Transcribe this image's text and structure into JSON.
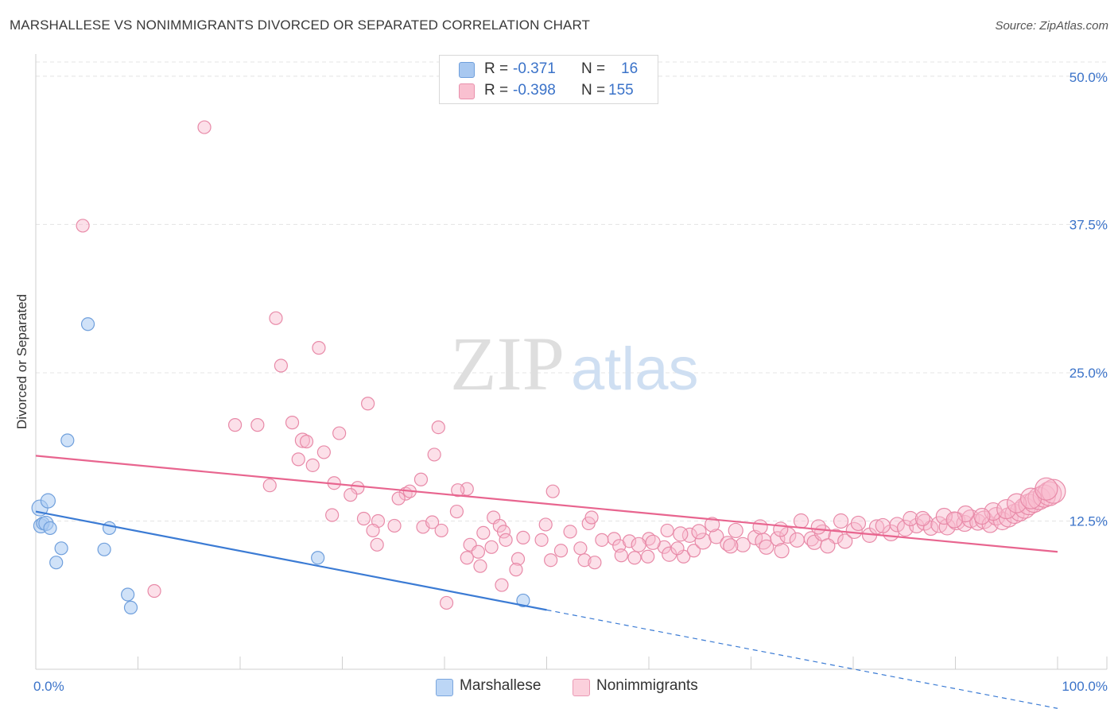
{
  "title": "MARSHALLESE VS NONIMMIGRANTS DIVORCED OR SEPARATED CORRELATION CHART",
  "source": "Source: ZipAtlas.com",
  "watermark": {
    "zip": "ZIP",
    "atlas": "atlas"
  },
  "legend_top": [
    {
      "r_label": "R =",
      "r_value": "-0.371",
      "n_label": "N =",
      "n_value": "16",
      "color": "#a8c8f0",
      "border": "#6f9fdc"
    },
    {
      "r_label": "R =",
      "r_value": "-0.398",
      "n_label": "N =",
      "n_value": "155",
      "color": "#f9c0d0",
      "border": "#e990ac"
    }
  ],
  "legend_bottom": [
    {
      "label": "Marshallese",
      "color": "#bcd6f6",
      "border": "#7aa6de"
    },
    {
      "label": "Nonimmigrants",
      "color": "#fbd0dc",
      "border": "#ea9ab4"
    }
  ],
  "chart_data": {
    "type": "scatter",
    "ylabel": "Divorced or Separated",
    "xlabel": "",
    "xlim": [
      0,
      100
    ],
    "ylim": [
      0,
      50
    ],
    "x_tick_labels": [
      {
        "value": 0,
        "label": "0.0%"
      },
      {
        "value": 100,
        "label": "100.0%"
      }
    ],
    "y_tick_labels": [
      {
        "value": 12.5,
        "label": "12.5%"
      },
      {
        "value": 25.0,
        "label": "25.0%"
      },
      {
        "value": 37.5,
        "label": "37.5%"
      },
      {
        "value": 50.0,
        "label": "50.0%"
      }
    ],
    "grid": true,
    "colors": {
      "marshallese": "#3b7bd4",
      "nonimmigrants": "#e8658f"
    },
    "series": [
      {
        "name": "Marshallese",
        "points": [
          [
            0.4,
            13.6,
            10
          ],
          [
            0.5,
            12.1,
            9
          ],
          [
            0.7,
            12.3,
            8
          ],
          [
            1.0,
            12.3,
            9
          ],
          [
            1.2,
            14.2,
            9
          ],
          [
            1.4,
            11.9,
            8
          ],
          [
            2.0,
            9.0,
            8
          ],
          [
            2.5,
            10.2,
            8
          ],
          [
            3.1,
            19.3,
            8
          ],
          [
            5.1,
            29.1,
            8
          ],
          [
            6.7,
            10.1,
            8
          ],
          [
            7.2,
            11.9,
            8
          ],
          [
            9.0,
            6.3,
            8
          ],
          [
            9.3,
            5.2,
            8
          ],
          [
            27.6,
            9.4,
            8
          ],
          [
            47.7,
            5.8,
            8
          ]
        ],
        "trend": {
          "x": [
            0,
            50
          ],
          "y": [
            13.3,
            5.0
          ],
          "dashed_to": [
            100,
            -3.3
          ]
        }
      },
      {
        "name": "Nonimmigrants",
        "points": [
          [
            16.5,
            45.7,
            8
          ],
          [
            4.6,
            37.4,
            8
          ],
          [
            23.5,
            29.6,
            8
          ],
          [
            27.7,
            27.1,
            8
          ],
          [
            24.0,
            25.6,
            8
          ],
          [
            32.5,
            22.4,
            8
          ],
          [
            19.5,
            20.6,
            8
          ],
          [
            21.7,
            20.6,
            8
          ],
          [
            25.1,
            20.8,
            8
          ],
          [
            29.7,
            19.9,
            8
          ],
          [
            39.4,
            20.4,
            8
          ],
          [
            26.1,
            19.3,
            9
          ],
          [
            26.5,
            19.2,
            8
          ],
          [
            28.2,
            18.3,
            8
          ],
          [
            25.7,
            17.7,
            8
          ],
          [
            39.0,
            18.1,
            8
          ],
          [
            27.1,
            17.2,
            8
          ],
          [
            37.7,
            16.0,
            8
          ],
          [
            22.9,
            15.5,
            8
          ],
          [
            29.2,
            15.7,
            8
          ],
          [
            31.5,
            15.3,
            8
          ],
          [
            42.2,
            15.2,
            8
          ],
          [
            41.3,
            15.1,
            8
          ],
          [
            36.2,
            14.8,
            8
          ],
          [
            36.6,
            15.0,
            8
          ],
          [
            30.8,
            14.7,
            8
          ],
          [
            35.5,
            14.4,
            8
          ],
          [
            50.6,
            15.0,
            8
          ],
          [
            41.2,
            13.3,
            8
          ],
          [
            29.0,
            13.0,
            8
          ],
          [
            32.1,
            12.7,
            8
          ],
          [
            33.5,
            12.5,
            8
          ],
          [
            44.8,
            12.8,
            8
          ],
          [
            37.9,
            12.0,
            8
          ],
          [
            38.8,
            12.4,
            8
          ],
          [
            45.4,
            12.1,
            8
          ],
          [
            33.0,
            11.7,
            8
          ],
          [
            35.1,
            12.1,
            8
          ],
          [
            39.7,
            11.7,
            8
          ],
          [
            49.9,
            12.2,
            8
          ],
          [
            54.1,
            12.3,
            8
          ],
          [
            54.4,
            12.8,
            8
          ],
          [
            43.8,
            11.5,
            8
          ],
          [
            45.8,
            11.6,
            8
          ],
          [
            47.7,
            11.1,
            8
          ],
          [
            52.3,
            11.6,
            8
          ],
          [
            56.6,
            11.0,
            8
          ],
          [
            60.0,
            11.0,
            8
          ],
          [
            33.4,
            10.5,
            8
          ],
          [
            42.5,
            10.5,
            8
          ],
          [
            44.6,
            10.3,
            8
          ],
          [
            46.0,
            10.9,
            8
          ],
          [
            49.5,
            10.9,
            8
          ],
          [
            51.4,
            10.0,
            8
          ],
          [
            53.3,
            10.2,
            8
          ],
          [
            55.4,
            10.9,
            8
          ],
          [
            57.1,
            10.4,
            8
          ],
          [
            58.1,
            10.8,
            8
          ],
          [
            59.0,
            10.5,
            9
          ],
          [
            61.5,
            10.3,
            8
          ],
          [
            43.3,
            9.9,
            8
          ],
          [
            47.2,
            9.3,
            8
          ],
          [
            50.4,
            9.2,
            8
          ],
          [
            53.7,
            9.2,
            8
          ],
          [
            57.3,
            9.6,
            8
          ],
          [
            58.6,
            9.4,
            8
          ],
          [
            59.9,
            9.5,
            8
          ],
          [
            62.0,
            9.7,
            9
          ],
          [
            63.4,
            9.5,
            8
          ],
          [
            64.4,
            10.0,
            8
          ],
          [
            42.2,
            9.4,
            8
          ],
          [
            43.5,
            8.7,
            8
          ],
          [
            47.0,
            8.4,
            8
          ],
          [
            54.7,
            9.0,
            8
          ],
          [
            45.6,
            7.1,
            8
          ],
          [
            11.6,
            6.6,
            8
          ],
          [
            40.2,
            5.6,
            8
          ],
          [
            60.4,
            10.7,
            9
          ],
          [
            62.8,
            10.2,
            8
          ],
          [
            64.0,
            11.3,
            9
          ],
          [
            65.3,
            10.8,
            10
          ],
          [
            66.6,
            11.2,
            9
          ],
          [
            67.7,
            10.6,
            9
          ],
          [
            69.2,
            10.5,
            9
          ],
          [
            70.4,
            11.1,
            9
          ],
          [
            71.2,
            10.8,
            10
          ],
          [
            72.6,
            11.0,
            9
          ],
          [
            73.6,
            11.3,
            10
          ],
          [
            74.5,
            10.9,
            9
          ],
          [
            75.9,
            11.0,
            9
          ],
          [
            76.2,
            10.7,
            9
          ],
          [
            77.0,
            11.5,
            10
          ],
          [
            78.3,
            11.2,
            9
          ],
          [
            79.2,
            10.8,
            9
          ],
          [
            80.1,
            11.7,
            10
          ],
          [
            81.6,
            11.3,
            9
          ],
          [
            82.3,
            12.0,
            9
          ],
          [
            83.7,
            11.5,
            10
          ],
          [
            84.3,
            12.2,
            9
          ],
          [
            85.1,
            11.9,
            10
          ],
          [
            86.2,
            12.1,
            9
          ],
          [
            87.0,
            12.4,
            10
          ],
          [
            87.6,
            11.9,
            9
          ],
          [
            88.4,
            12.2,
            10
          ],
          [
            89.2,
            12.0,
            10
          ],
          [
            90.1,
            12.5,
            11
          ],
          [
            90.9,
            12.3,
            10
          ],
          [
            91.5,
            12.7,
            11
          ],
          [
            92.2,
            12.4,
            10
          ],
          [
            92.8,
            12.6,
            11
          ],
          [
            93.4,
            12.2,
            10
          ],
          [
            94.0,
            12.9,
            11
          ],
          [
            94.6,
            12.5,
            11
          ],
          [
            95.2,
            12.8,
            12
          ],
          [
            95.8,
            13.1,
            12
          ],
          [
            96.3,
            13.3,
            12
          ],
          [
            96.8,
            13.6,
            13
          ],
          [
            97.2,
            13.9,
            13
          ],
          [
            97.7,
            14.1,
            13
          ],
          [
            98.2,
            14.4,
            14
          ],
          [
            98.7,
            14.6,
            14
          ],
          [
            99.2,
            14.8,
            15
          ],
          [
            99.6,
            15.0,
            15
          ],
          [
            80.5,
            12.3,
            9
          ],
          [
            78.8,
            12.5,
            9
          ],
          [
            82.9,
            12.1,
            9
          ],
          [
            85.6,
            12.7,
            9
          ],
          [
            88.9,
            12.9,
            10
          ],
          [
            91.0,
            13.1,
            10
          ],
          [
            93.7,
            13.3,
            11
          ],
          [
            95.0,
            13.5,
            12
          ],
          [
            76.6,
            12.0,
            9
          ],
          [
            74.9,
            12.5,
            9
          ],
          [
            72.9,
            11.8,
            9
          ],
          [
            70.9,
            12.0,
            9
          ],
          [
            68.5,
            11.7,
            9
          ],
          [
            66.2,
            12.2,
            9
          ],
          [
            64.9,
            11.6,
            9
          ],
          [
            63.1,
            11.4,
            9
          ],
          [
            61.8,
            11.7,
            8
          ],
          [
            68.0,
            10.4,
            9
          ],
          [
            73.0,
            10.0,
            9
          ],
          [
            77.5,
            10.4,
            9
          ],
          [
            71.5,
            10.3,
            9
          ],
          [
            86.8,
            12.7,
            9
          ],
          [
            89.9,
            12.6,
            10
          ],
          [
            92.6,
            12.9,
            10
          ],
          [
            96.0,
            14.0,
            12
          ],
          [
            97.4,
            14.4,
            13
          ],
          [
            98.9,
            15.2,
            14
          ]
        ],
        "trend": {
          "x": [
            0,
            100
          ],
          "y": [
            18.0,
            9.9
          ]
        }
      }
    ]
  }
}
